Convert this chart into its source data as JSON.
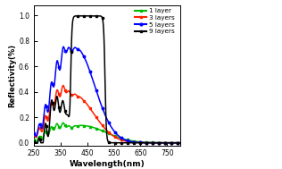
{
  "xlabel": "Wavelength(nm)",
  "ylabel": "Reflectivity(%)",
  "xlim": [
    250,
    800
  ],
  "ylim": [
    -0.02,
    1.08
  ],
  "yticks": [
    0.0,
    0.2,
    0.4,
    0.6,
    0.8,
    1.0
  ],
  "xticks": [
    250,
    350,
    450,
    550,
    650,
    750
  ],
  "colors": {
    "1layer": "#00bb00",
    "3layers": "#ff2200",
    "5layers": "#0000ff",
    "9layers": "#000000"
  },
  "legend_labels": [
    "1 layer",
    "3 layers",
    "5 layers",
    "9 layers"
  ],
  "background_color": "#ffffff",
  "figsize": [
    3.16,
    1.89
  ],
  "dpi": 100
}
